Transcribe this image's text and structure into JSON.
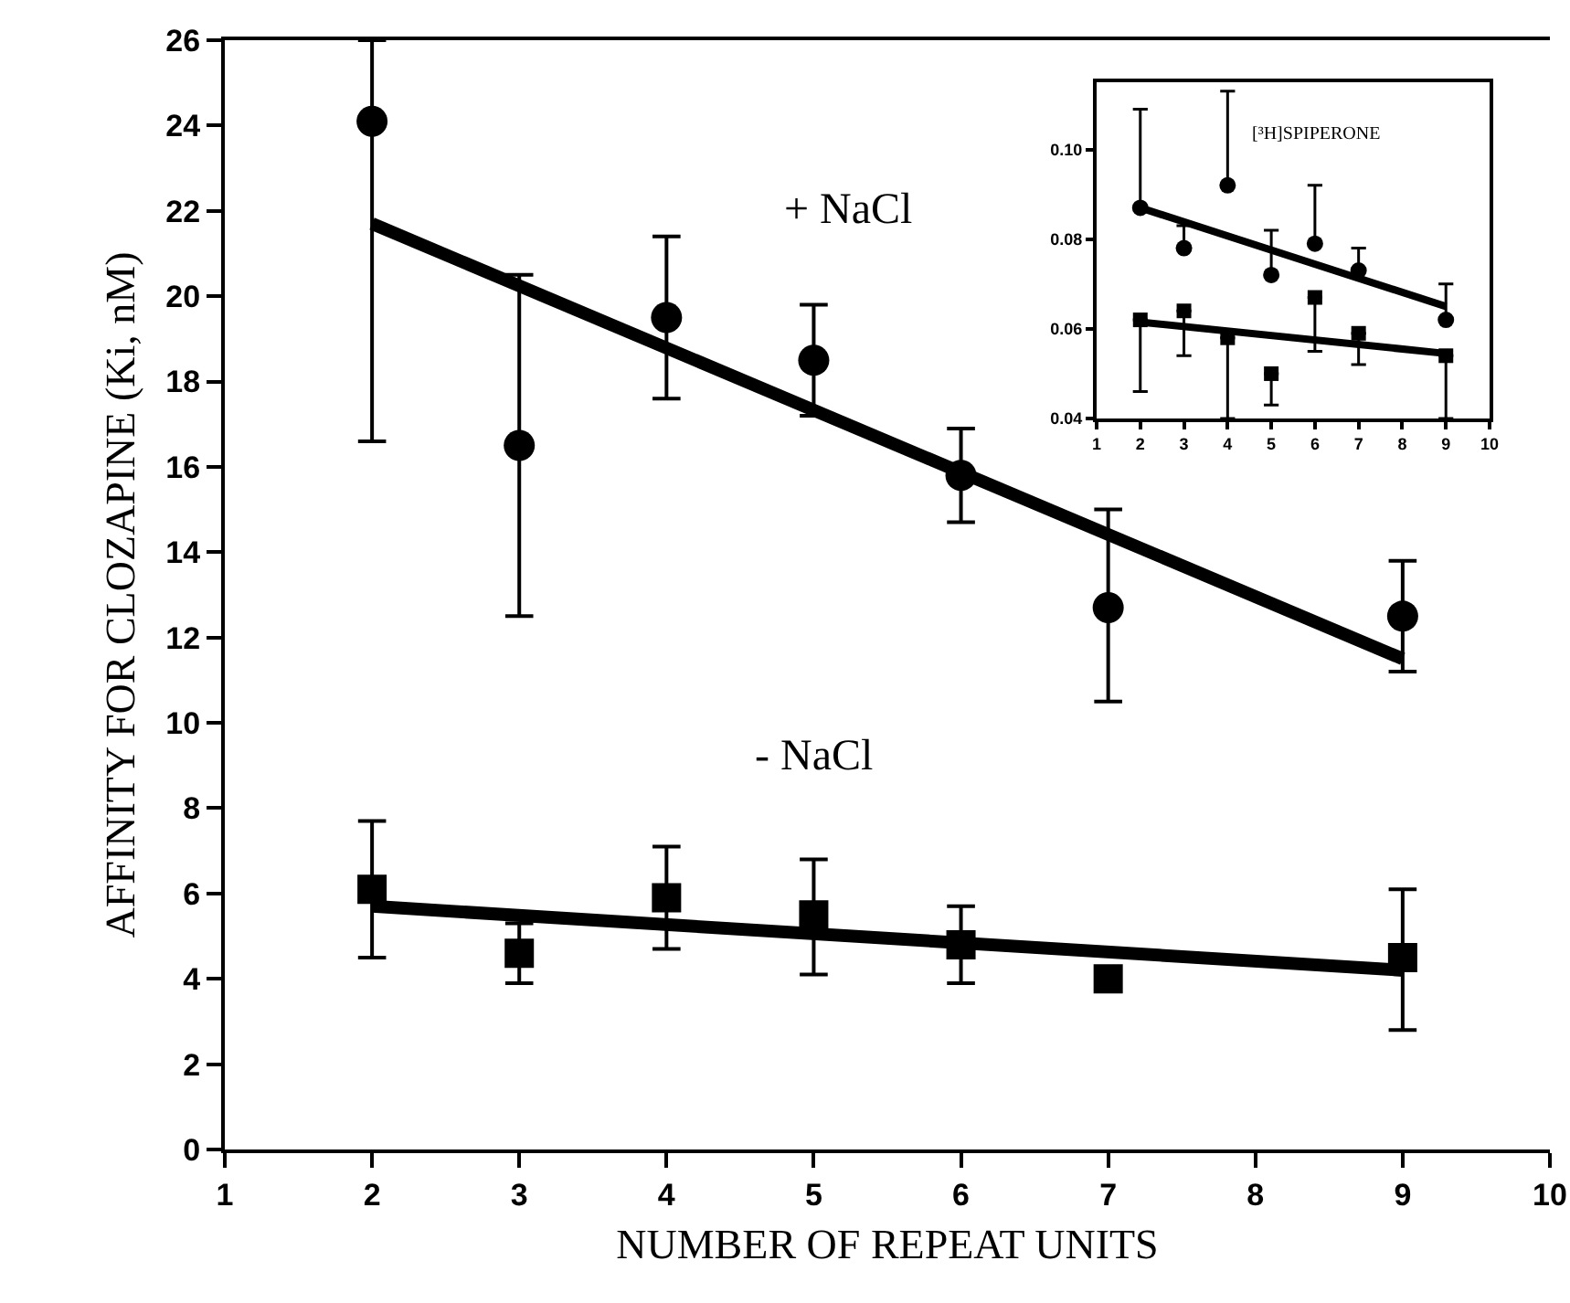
{
  "chart_data": [
    {
      "type": "scatter",
      "xlabel": "NUMBER OF REPEAT UNITS",
      "ylabel": "AFFINITY FOR CLOZAPINE (Ki, nM)",
      "xlim": [
        1,
        10
      ],
      "xticks": [
        1,
        2,
        3,
        4,
        5,
        6,
        7,
        8,
        9,
        10
      ],
      "ylim": [
        0,
        26
      ],
      "yticks": [
        0,
        2,
        4,
        6,
        8,
        10,
        12,
        14,
        16,
        18,
        20,
        22,
        24,
        26
      ],
      "grid": false,
      "series": [
        {
          "name": "+ NaCl",
          "color": "#000000",
          "marker": "circle",
          "x": [
            2,
            3,
            4,
            5,
            6,
            7,
            9
          ],
          "values": [
            24.1,
            16.5,
            19.5,
            18.5,
            15.8,
            12.7,
            12.5
          ],
          "errors": [
            [
              16.6,
              26
            ],
            [
              12.5,
              20.5
            ],
            [
              17.6,
              21.4
            ],
            [
              17.2,
              19.8
            ],
            [
              14.7,
              16.9
            ],
            [
              10.5,
              15.0
            ],
            [
              11.2,
              13.8
            ]
          ]
        },
        {
          "type": "line",
          "color": "#000000",
          "x": [
            2,
            9
          ],
          "values": [
            21.7,
            11.5
          ]
        },
        {
          "name": "- NaCl",
          "color": "#000000",
          "marker": "square",
          "x": [
            2,
            3,
            4,
            5,
            6,
            7,
            9
          ],
          "values": [
            6.1,
            4.6,
            5.9,
            5.5,
            4.8,
            4.0,
            4.5
          ],
          "errors": [
            [
              4.5,
              7.7
            ],
            [
              3.9,
              5.3
            ],
            [
              4.7,
              7.1
            ],
            [
              4.1,
              6.8
            ],
            [
              3.9,
              5.7
            ],
            null,
            [
              2.8,
              6.1
            ]
          ]
        },
        {
          "type": "line",
          "color": "#000000",
          "x": [
            2,
            9
          ],
          "values": [
            5.7,
            4.2
          ]
        }
      ]
    },
    {
      "type": "scatter",
      "title": "[³H]SPIPERONE",
      "xlim": [
        1,
        10
      ],
      "xticks": [
        1,
        2,
        3,
        4,
        5,
        6,
        7,
        8,
        9,
        10
      ],
      "ylim": [
        0.04,
        0.115
      ],
      "yticks": [
        0.04,
        0.06,
        0.08,
        {
          "value": 0.1,
          "label": "0.10"
        }
      ],
      "grid": false,
      "series": [
        {
          "color": "#000000",
          "marker": "circle",
          "x": [
            2,
            3,
            4,
            5,
            6,
            7,
            9
          ],
          "values": [
            0.087,
            0.078,
            0.092,
            0.072,
            0.079,
            0.073,
            0.062
          ],
          "errors": [
            [
              0.087,
              0.109
            ],
            [
              0.078,
              0.083
            ],
            [
              0.092,
              0.113
            ],
            [
              0.072,
              0.082
            ],
            [
              0.079,
              0.092
            ],
            [
              0.073,
              0.078
            ],
            [
              0.062,
              0.07
            ]
          ]
        },
        {
          "type": "line",
          "color": "#000000",
          "x": [
            2,
            9
          ],
          "values": [
            0.087,
            0.065
          ]
        },
        {
          "color": "#000000",
          "marker": "square",
          "x": [
            2,
            3,
            4,
            5,
            6,
            7,
            9
          ],
          "values": [
            0.062,
            0.064,
            0.058,
            0.05,
            0.067,
            0.059,
            0.054
          ],
          "errors": [
            [
              0.046,
              0.062
            ],
            [
              0.054,
              0.064
            ],
            [
              0.04,
              0.058
            ],
            [
              0.043,
              0.05
            ],
            [
              0.055,
              0.067
            ],
            [
              0.052,
              0.059
            ],
            [
              0.04,
              0.054
            ]
          ]
        },
        {
          "type": "line",
          "color": "#000000",
          "x": [
            2,
            9
          ],
          "values": [
            0.0615,
            0.0545
          ]
        }
      ]
    }
  ]
}
